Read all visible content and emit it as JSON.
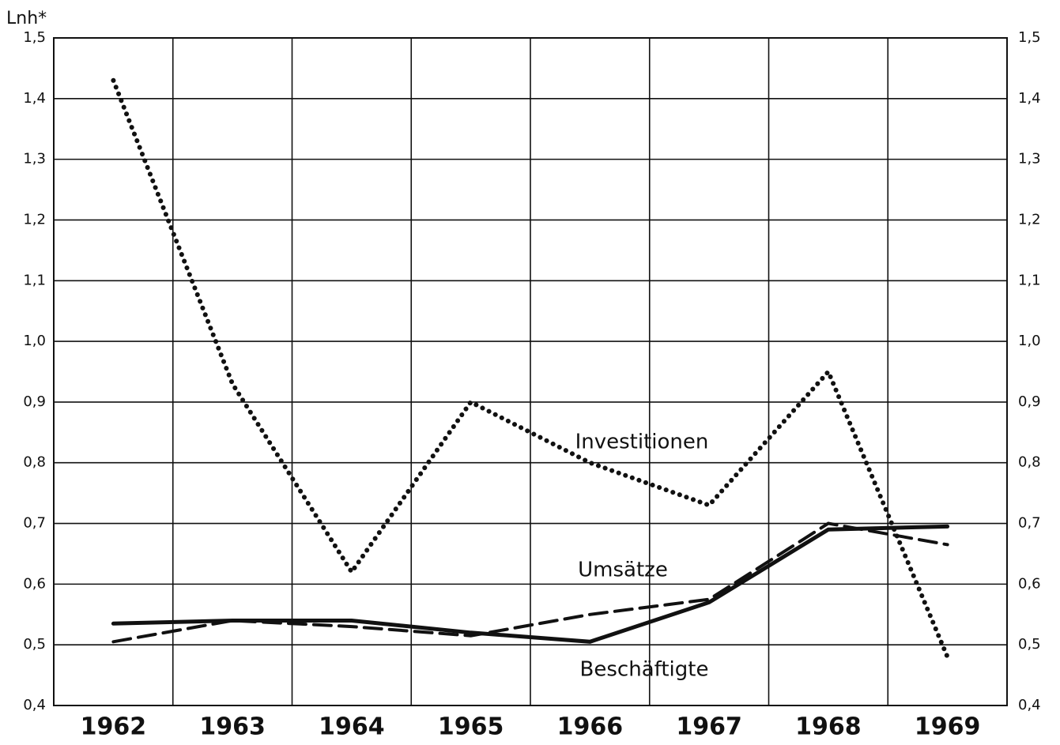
{
  "chart_data": {
    "type": "line",
    "y_label": "Lnh*",
    "categories": [
      "1962",
      "1963",
      "1964",
      "1965",
      "1966",
      "1967",
      "1968",
      "1969"
    ],
    "series": [
      {
        "name": "Investitionen",
        "color": "#111111",
        "dash": "dotted",
        "values": [
          1.43,
          0.93,
          0.62,
          0.9,
          0.8,
          0.73,
          0.95,
          0.48
        ]
      },
      {
        "name": "Umsätze",
        "color": "#111111",
        "dash": "dashed",
        "values": [
          0.505,
          0.54,
          0.53,
          0.515,
          0.55,
          0.575,
          0.7,
          0.665
        ]
      },
      {
        "name": "Beschäftigte",
        "color": "#111111",
        "dash": "solid",
        "values": [
          0.535,
          0.54,
          0.54,
          0.52,
          0.505,
          0.57,
          0.69,
          0.695
        ]
      }
    ],
    "ylim": [
      0.4,
      1.5
    ],
    "yticks": [
      {
        "value": 0.4,
        "label": "0,4"
      },
      {
        "value": 0.5,
        "label": "0,5"
      },
      {
        "value": 0.6,
        "label": "0,6"
      },
      {
        "value": 0.7,
        "label": "0,7"
      },
      {
        "value": 0.8,
        "label": "0,8"
      },
      {
        "value": 0.9,
        "label": "0,9"
      },
      {
        "value": 1.0,
        "label": "1,0"
      },
      {
        "value": 1.1,
        "label": "1,1"
      },
      {
        "value": 1.2,
        "label": "1,2"
      },
      {
        "value": 1.3,
        "label": "1,3"
      },
      {
        "value": 1.4,
        "label": "1,4"
      },
      {
        "value": 1.5,
        "label": "1,5"
      }
    ],
    "grid": true
  }
}
